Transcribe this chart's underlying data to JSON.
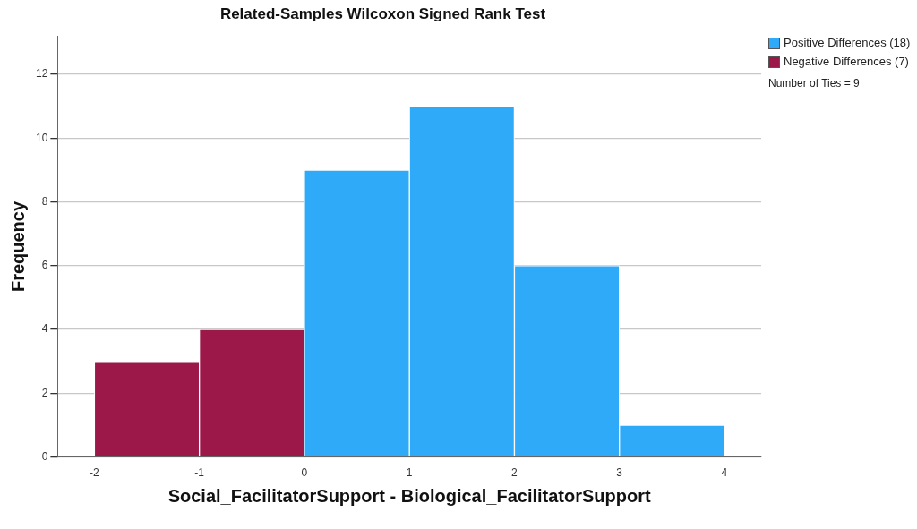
{
  "chart_data": {
    "type": "histogram",
    "title": "Related-Samples Wilcoxon Signed Rank Test",
    "xlabel": "Social_FacilitatorSupport - Biological_FacilitatorSupport",
    "ylabel": "Frequency",
    "bins": [
      -2,
      -1,
      0,
      1,
      2,
      3,
      4
    ],
    "series": [
      {
        "name": "Positive Differences (18)",
        "color": "#2eaaf8",
        "values": [
          null,
          null,
          9,
          11,
          6,
          1
        ]
      },
      {
        "name": "Negative Differences (7)",
        "color": "#9c1848",
        "values": [
          3,
          4,
          null,
          null,
          null,
          null
        ]
      }
    ],
    "xlim": [
      -2.35,
      4.35
    ],
    "xticks": [
      -2,
      -1,
      0,
      1,
      2,
      3,
      4
    ],
    "ylim": [
      0,
      13.2
    ],
    "yticks": [
      0,
      2,
      4,
      6,
      8,
      10,
      12
    ],
    "grid": "y",
    "legend": "top right",
    "annotations": [
      "Number of Ties = 9"
    ]
  }
}
